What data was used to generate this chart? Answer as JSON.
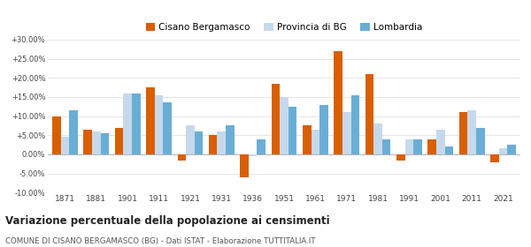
{
  "years": [
    1871,
    1881,
    1901,
    1911,
    1921,
    1931,
    1936,
    1951,
    1961,
    1971,
    1981,
    1991,
    2001,
    2011,
    2021
  ],
  "cisano": [
    10.0,
    6.5,
    7.0,
    17.5,
    -1.5,
    5.0,
    -6.0,
    18.5,
    7.5,
    27.0,
    21.0,
    -1.5,
    4.0,
    11.0,
    -2.0
  ],
  "provincia": [
    4.5,
    6.0,
    16.0,
    15.5,
    7.5,
    6.0,
    -0.5,
    15.0,
    6.5,
    11.0,
    8.0,
    4.0,
    6.5,
    11.5,
    1.5
  ],
  "lombardia": [
    11.5,
    5.5,
    16.0,
    13.5,
    6.0,
    7.5,
    4.0,
    12.5,
    13.0,
    15.5,
    4.0,
    4.0,
    2.0,
    7.0,
    2.5
  ],
  "color_cisano": "#d95f02",
  "color_provincia": "#c6d9ec",
  "color_lombardia": "#6aaed6",
  "ylim": [
    -10,
    30
  ],
  "yticks": [
    -10,
    -5,
    0,
    5,
    10,
    15,
    20,
    25,
    30
  ],
  "title": "Variazione percentuale della popolazione ai censimenti",
  "subtitle": "COMUNE DI CISANO BERGAMASCO (BG) - Dati ISTAT - Elaborazione TUTTITALIA.IT",
  "legend_labels": [
    "Cisano Bergamasco",
    "Provincia di BG",
    "Lombardia"
  ],
  "background_color": "#ffffff",
  "grid_color": "#e0e0e0"
}
